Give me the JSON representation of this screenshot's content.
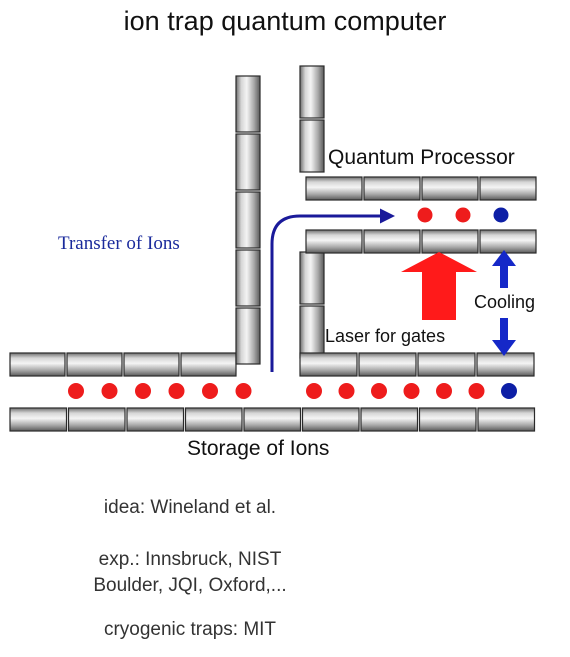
{
  "title": "ion trap quantum computer",
  "labels": {
    "quantum_processor": "Quantum Processor",
    "transfer": "Transfer of Ions",
    "cooling": "Cooling",
    "laser": "Laser for gates",
    "storage": "Storage of Ions"
  },
  "captions": {
    "idea": "idea: Wineland et al.",
    "exp_line1": "exp.: Innsbruck, NIST",
    "exp_line2": "Boulder, JQI, Oxford,...",
    "cryo": "cryogenic traps: MIT"
  },
  "colors": {
    "ion_red": "#ee1c1c",
    "ion_blue": "#0d1fa6",
    "arrow_navy": "#1a1a9a",
    "laser_red": "#ff1a1a",
    "cooling_blue": "#1528c8",
    "transfer_text": "#1a2a9c"
  },
  "ions": {
    "processor": [
      "red",
      "red",
      "blue"
    ],
    "storage_left": [
      "red",
      "red",
      "red",
      "red",
      "red",
      "red"
    ],
    "storage_right": [
      "red",
      "red",
      "red",
      "red",
      "red",
      "red",
      "blue"
    ]
  }
}
